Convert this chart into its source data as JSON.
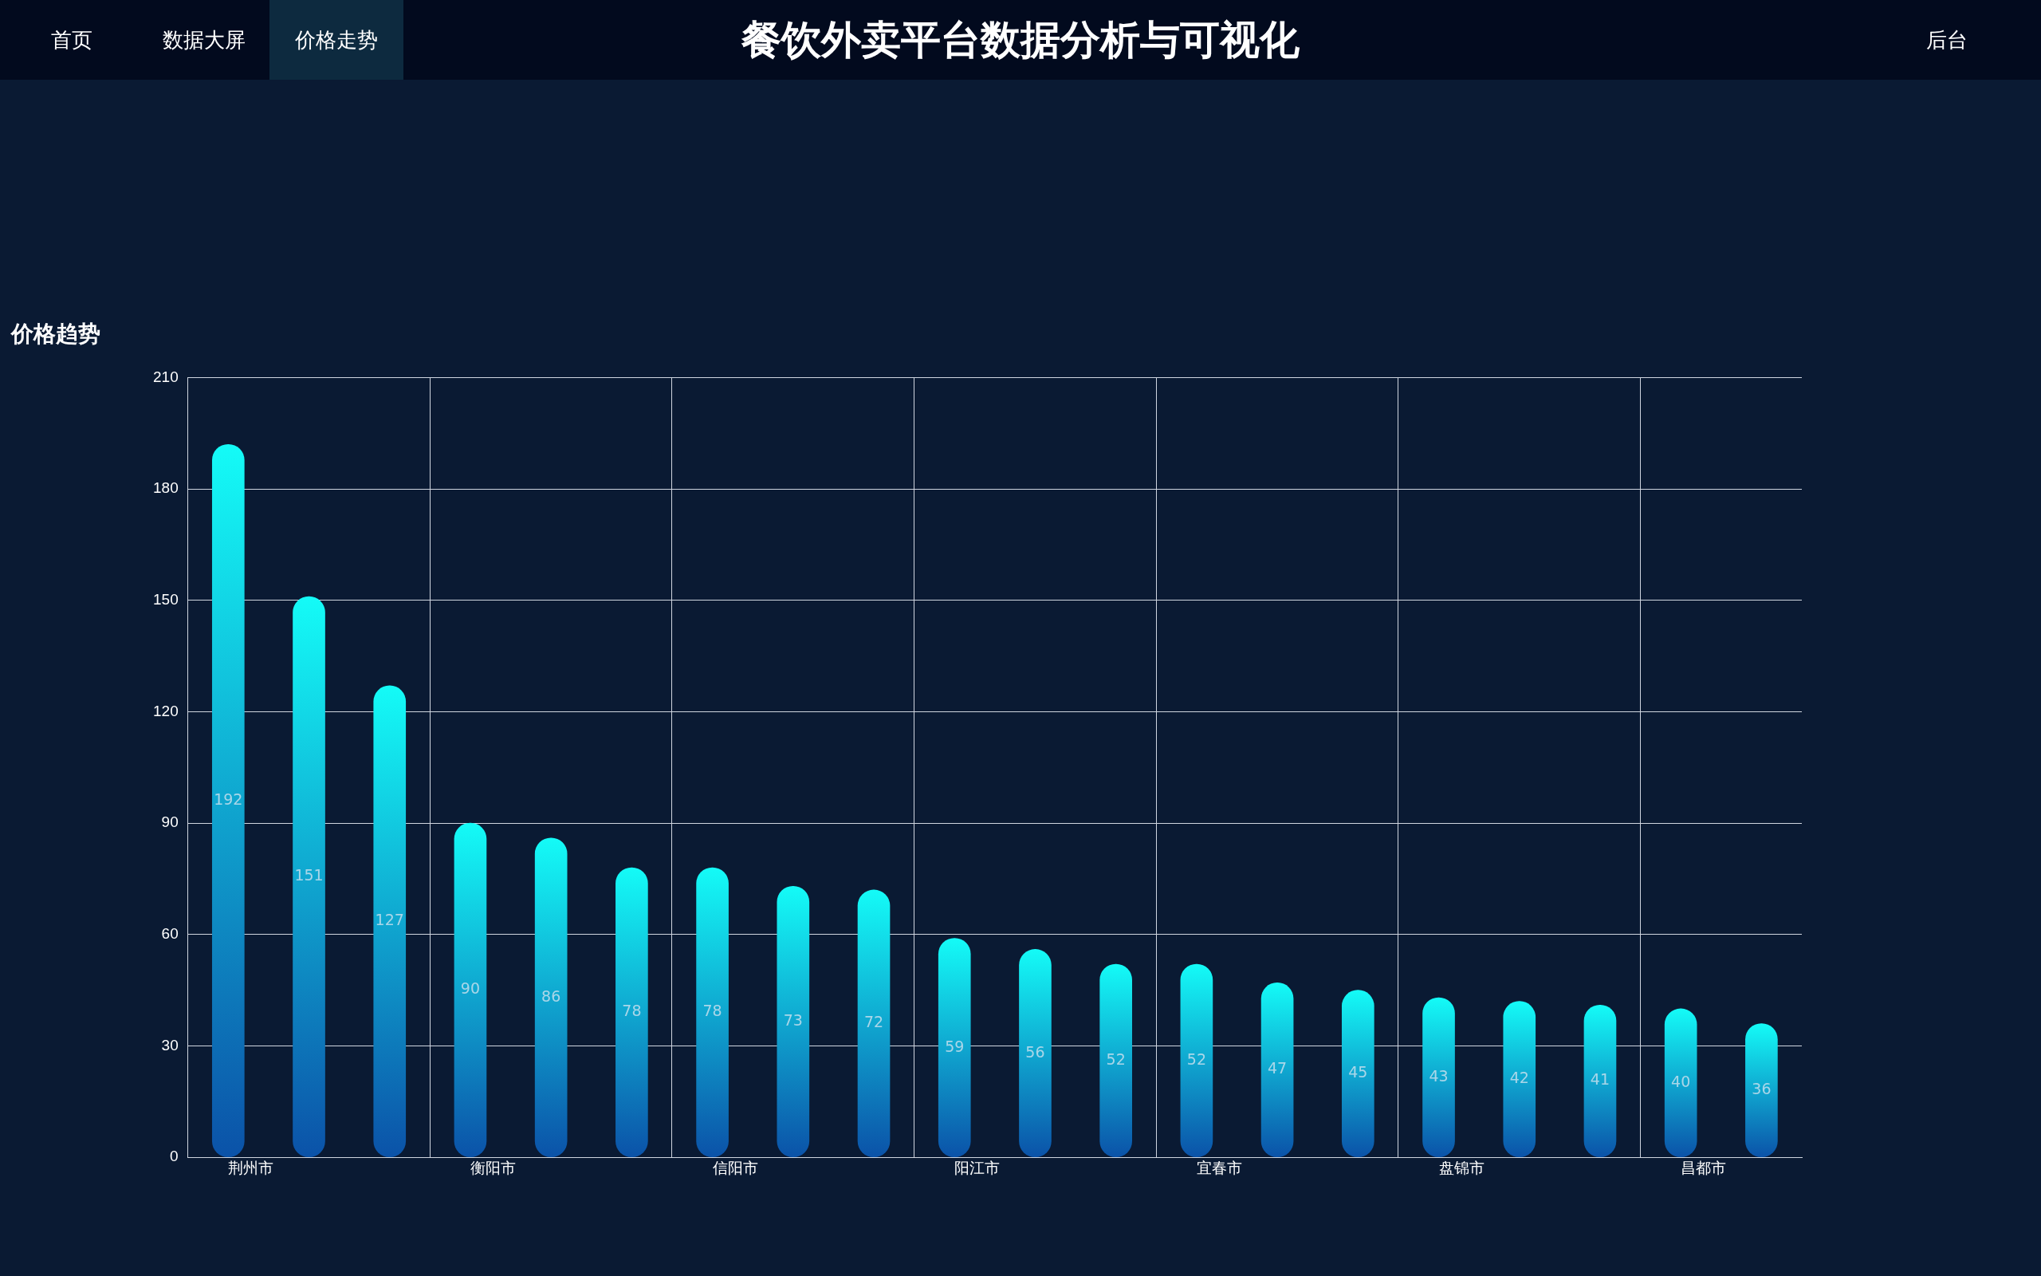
{
  "chart_data": {
    "type": "bar",
    "title": "餐饮外卖平台数据分析与可视化",
    "subtitle": "价格趋势",
    "annotations": [
      "首页",
      "数据大屏",
      "价格走势",
      "后台"
    ],
    "categories": [
      "荆州市",
      null,
      null,
      "衡阳市",
      null,
      null,
      "信阳市",
      null,
      null,
      "阳江市",
      null,
      null,
      "宜春市",
      null,
      null,
      "盘锦市",
      null,
      null,
      "昌都市",
      null
    ],
    "values": [
      192,
      151,
      127,
      90,
      86,
      78,
      78,
      73,
      72,
      59,
      56,
      52,
      52,
      47,
      45,
      43,
      42,
      41,
      40,
      36
    ],
    "color": "#14fbf7",
    "ylim": [
      0,
      210
    ],
    "yticks": [
      0,
      30,
      60,
      90,
      120,
      150,
      180,
      210
    ],
    "grid": true,
    "data_labels": true,
    "legend": false
  }
}
